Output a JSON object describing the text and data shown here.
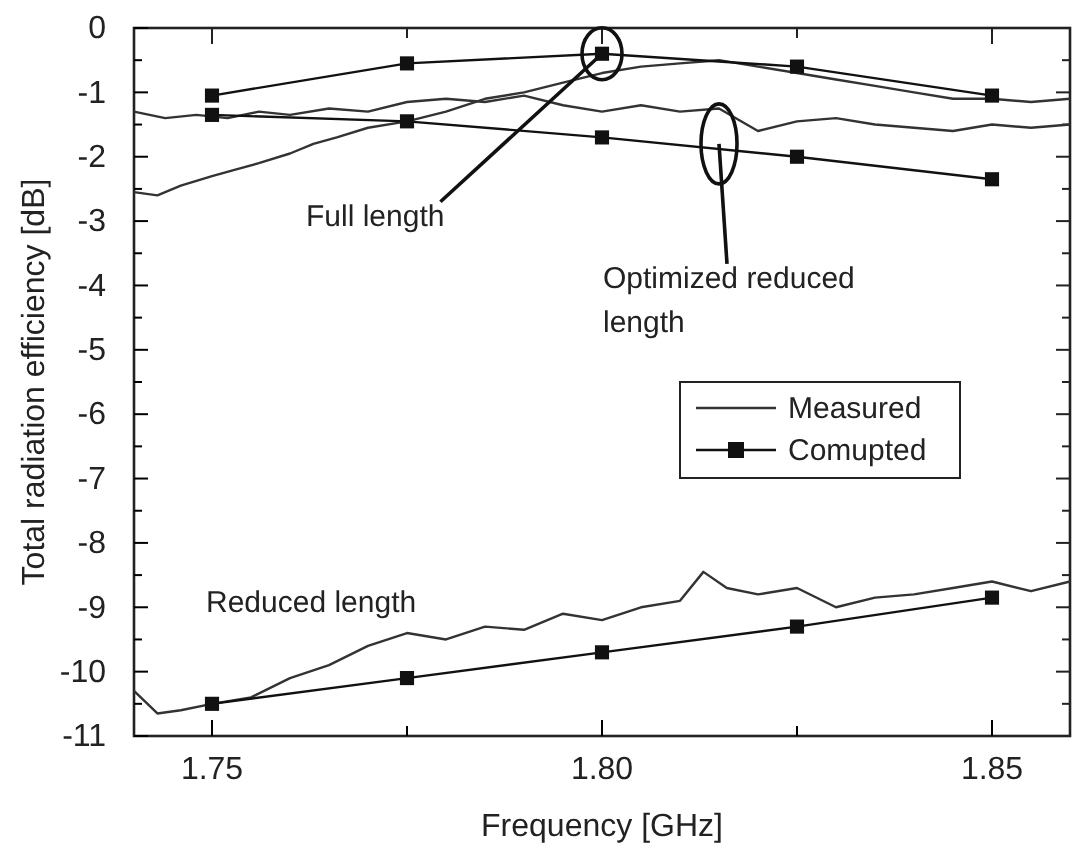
{
  "chart_data": {
    "type": "line",
    "xlabel": "Frequency [GHz]",
    "ylabel": "Total radiation efficiency [dB]",
    "xlim": [
      1.74,
      1.86
    ],
    "ylim": [
      -11,
      0
    ],
    "xticks": [
      {
        "value": 1.75,
        "label": "1.75"
      },
      {
        "value": 1.775,
        "label": null
      },
      {
        "value": 1.8,
        "label": "1.80"
      },
      {
        "value": 1.825,
        "label": null
      },
      {
        "value": 1.85,
        "label": "1.85"
      }
    ],
    "yticks": [
      0,
      {
        "value": -0.5,
        "label": null
      },
      -1,
      {
        "value": -1.5,
        "label": null
      },
      -2,
      {
        "value": -2.5,
        "label": null
      },
      -3,
      {
        "value": -3.5,
        "label": null
      },
      -4,
      {
        "value": -4.5,
        "label": null
      },
      -5,
      {
        "value": -5.5,
        "label": null
      },
      -6,
      {
        "value": -6.5,
        "label": null
      },
      -7,
      {
        "value": -7.5,
        "label": null
      },
      -8,
      {
        "value": -8.5,
        "label": null
      },
      -9,
      {
        "value": -9.5,
        "label": null
      },
      -10,
      {
        "value": -10.5,
        "label": null
      },
      -11
    ],
    "legend": "right",
    "line_style": "solid",
    "series": [
      {
        "name": "Measured",
        "color": "#333333",
        "marker": "none",
        "x": [
          1.74,
          1.743,
          1.746,
          1.75,
          1.753,
          1.756,
          1.76,
          1.763,
          1.766,
          1.77,
          1.775,
          1.78,
          1.785,
          1.79,
          1.795,
          1.8,
          1.805,
          1.81,
          1.815,
          1.82,
          1.825,
          1.83,
          1.835,
          1.84,
          1.845,
          1.85,
          1.855,
          1.86
        ],
        "values": [
          -2.55,
          -2.6,
          -2.45,
          -2.3,
          -2.2,
          -2.1,
          -1.95,
          -1.8,
          -1.7,
          -1.55,
          -1.45,
          -1.3,
          -1.1,
          -1.0,
          -0.85,
          -0.7,
          -0.6,
          -0.55,
          -0.5,
          -0.6,
          -0.7,
          -0.8,
          -0.9,
          -1.0,
          -1.1,
          -1.1,
          -1.15,
          -1.1
        ]
      },
      {
        "color": "#333333",
        "marker": "none",
        "x": [
          1.74,
          1.744,
          1.748,
          1.752,
          1.756,
          1.76,
          1.765,
          1.77,
          1.775,
          1.78,
          1.785,
          1.79,
          1.795,
          1.8,
          1.805,
          1.81,
          1.815,
          1.82,
          1.825,
          1.83,
          1.835,
          1.84,
          1.845,
          1.85,
          1.855,
          1.86
        ],
        "values": [
          -1.3,
          -1.4,
          -1.35,
          -1.4,
          -1.3,
          -1.35,
          -1.25,
          -1.3,
          -1.15,
          -1.1,
          -1.15,
          -1.05,
          -1.2,
          -1.3,
          -1.2,
          -1.3,
          -1.25,
          -1.6,
          -1.45,
          -1.4,
          -1.5,
          -1.55,
          -1.6,
          -1.5,
          -1.55,
          -1.5
        ]
      },
      {
        "color": "#333333",
        "marker": "none",
        "x": [
          1.74,
          1.743,
          1.746,
          1.75,
          1.755,
          1.76,
          1.765,
          1.77,
          1.775,
          1.78,
          1.785,
          1.79,
          1.795,
          1.8,
          1.805,
          1.81,
          1.813,
          1.816,
          1.82,
          1.825,
          1.83,
          1.835,
          1.84,
          1.845,
          1.85,
          1.855,
          1.86
        ],
        "values": [
          -10.3,
          -10.65,
          -10.6,
          -10.5,
          -10.4,
          -10.1,
          -9.9,
          -9.6,
          -9.4,
          -9.5,
          -9.3,
          -9.35,
          -9.1,
          -9.2,
          -9.0,
          -8.9,
          -8.45,
          -8.7,
          -8.8,
          -8.7,
          -9.0,
          -8.85,
          -8.8,
          -8.7,
          -8.6,
          -8.75,
          -8.6
        ]
      },
      {
        "name": "Comupted",
        "color": "#111111",
        "marker": "square",
        "x": [
          1.75,
          1.775,
          1.8,
          1.825,
          1.85
        ],
        "values": [
          -1.05,
          -0.55,
          -0.4,
          -0.6,
          -1.05
        ]
      },
      {
        "color": "#111111",
        "marker": "square",
        "x": [
          1.75,
          1.775,
          1.8,
          1.825,
          1.85
        ],
        "values": [
          -1.35,
          -1.45,
          -1.7,
          -2.0,
          -2.35
        ]
      },
      {
        "color": "#111111",
        "marker": "square",
        "x": [
          1.75,
          1.775,
          1.8,
          1.825,
          1.85
        ],
        "values": [
          -10.5,
          -10.1,
          -9.7,
          -9.3,
          -8.85
        ]
      }
    ],
    "annotations": [
      {
        "text": "Full length",
        "x": 1.8,
        "y": -0.4
      },
      {
        "text": "Optimized reduced length",
        "x": 1.815,
        "y": -1.8
      },
      "Reduced length"
    ]
  }
}
